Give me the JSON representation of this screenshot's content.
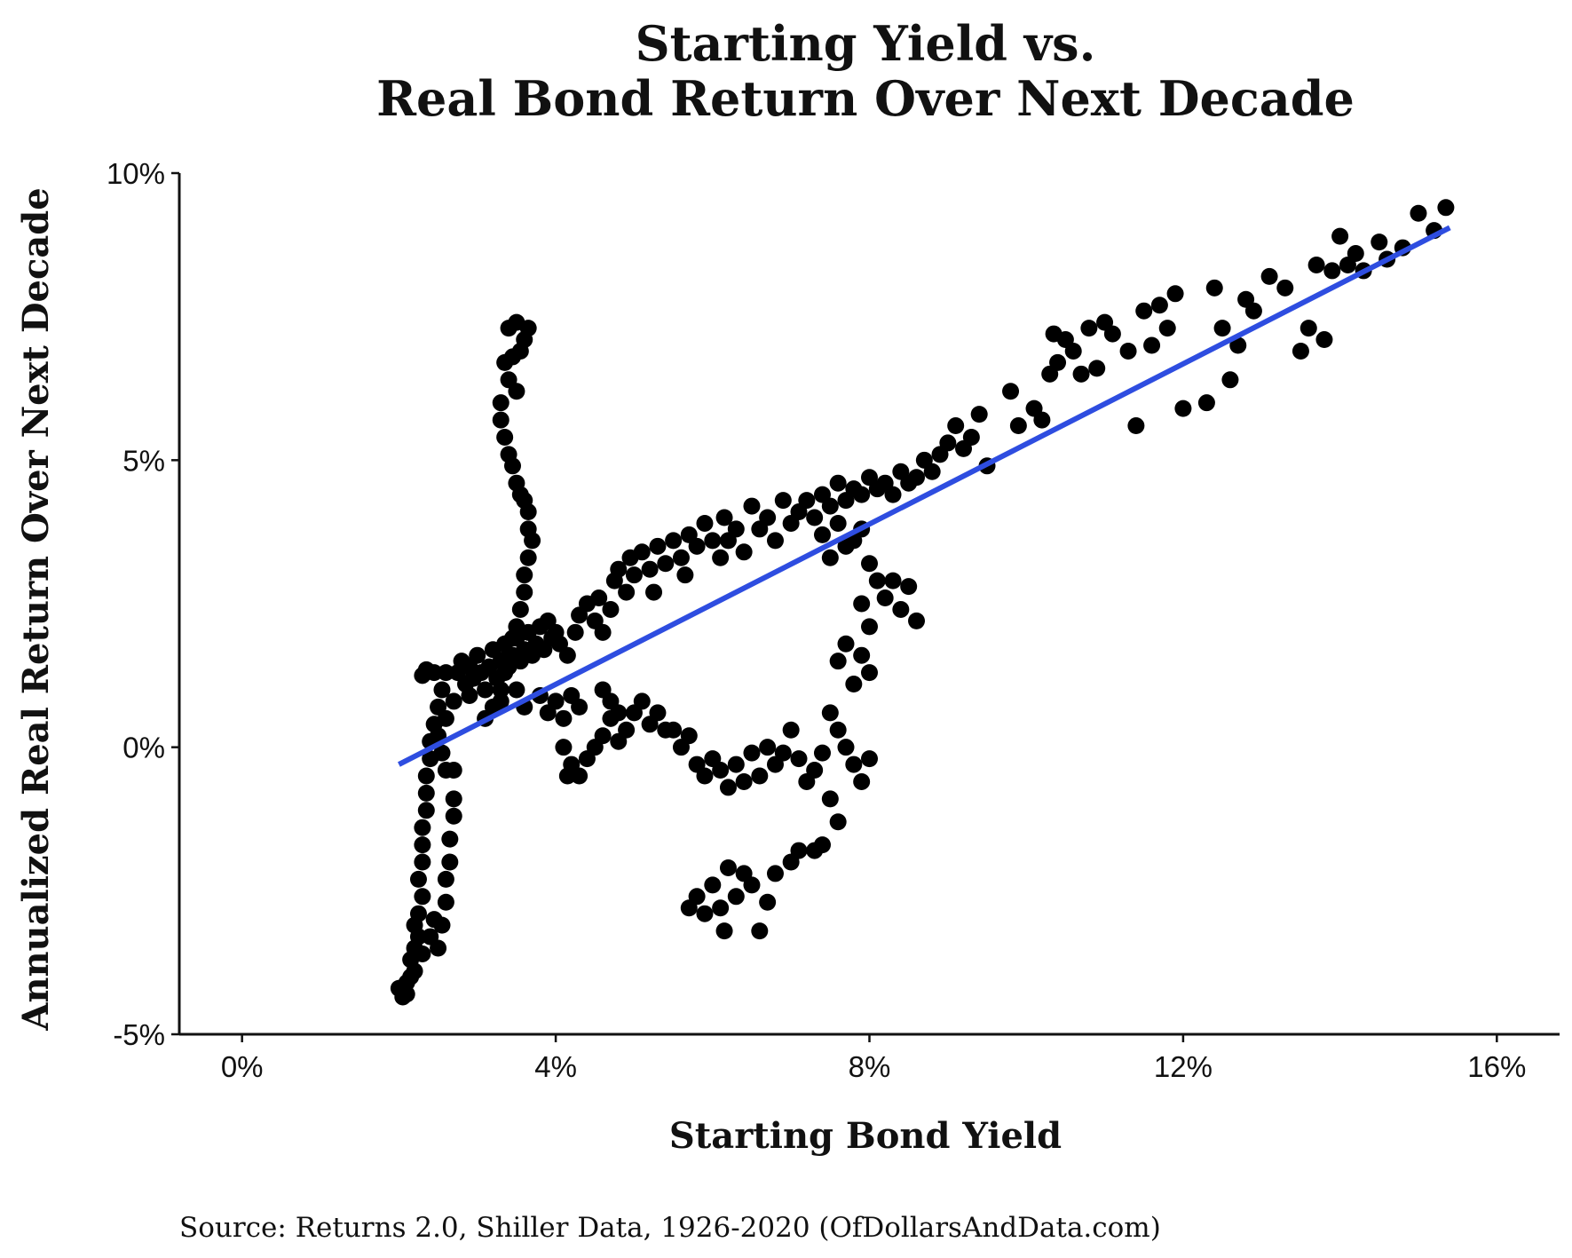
{
  "chart_data": {
    "type": "scatter",
    "title_lines": [
      "Starting Yield vs.",
      "Real Bond Return Over Next Decade"
    ],
    "xlabel": "Starting Bond Yield",
    "ylabel": "Annualized Real Return Over Next Decade",
    "source": "Source:  Returns 2.0, Shiller Data, 1926-2020 (OfDollarsAndData.com)",
    "xlim": [
      -0.8,
      16.8
    ],
    "ylim": [
      -5,
      10
    ],
    "x_ticks": [
      {
        "value": 0,
        "label": "0%"
      },
      {
        "value": 4,
        "label": "4%"
      },
      {
        "value": 8,
        "label": "8%"
      },
      {
        "value": 12,
        "label": "12%"
      },
      {
        "value": 16,
        "label": "16%"
      }
    ],
    "y_ticks": [
      {
        "value": -5,
        "label": "-5%"
      },
      {
        "value": 0,
        "label": "0%"
      },
      {
        "value": 5,
        "label": "5%"
      },
      {
        "value": 10,
        "label": "10%"
      }
    ],
    "grid": false,
    "point_color": "#000000",
    "trend_color": "#2e4de0",
    "trend_line": {
      "x": [
        2.0,
        15.4
      ],
      "y": [
        -0.3,
        9.05
      ]
    },
    "series": [
      {
        "points": [
          [
            2.0,
            -4.2
          ],
          [
            2.05,
            -4.35
          ],
          [
            2.1,
            -4.3
          ],
          [
            2.1,
            -4.1
          ],
          [
            2.15,
            -4.0
          ],
          [
            2.2,
            -3.9
          ],
          [
            2.15,
            -3.7
          ],
          [
            2.2,
            -3.5
          ],
          [
            2.25,
            -3.3
          ],
          [
            2.2,
            -3.1
          ],
          [
            2.25,
            -2.9
          ],
          [
            2.3,
            -2.6
          ],
          [
            2.25,
            -2.3
          ],
          [
            2.3,
            -2.0
          ],
          [
            2.3,
            -1.7
          ],
          [
            2.3,
            -1.4
          ],
          [
            2.35,
            -1.1
          ],
          [
            2.35,
            -0.8
          ],
          [
            2.35,
            -0.5
          ],
          [
            2.4,
            -0.2
          ],
          [
            2.4,
            0.1
          ],
          [
            2.45,
            0.4
          ],
          [
            2.5,
            0.7
          ],
          [
            2.55,
            1.0
          ],
          [
            2.6,
            1.3
          ],
          [
            2.3,
            1.25
          ],
          [
            2.35,
            1.35
          ],
          [
            2.45,
            1.3
          ],
          [
            2.3,
            -3.6
          ],
          [
            2.4,
            -3.3
          ],
          [
            2.45,
            -3.0
          ],
          [
            2.5,
            -3.5
          ],
          [
            2.55,
            -3.1
          ],
          [
            2.6,
            -2.7
          ],
          [
            2.6,
            -2.3
          ],
          [
            2.65,
            -2.0
          ],
          [
            2.65,
            -1.6
          ],
          [
            2.7,
            -1.2
          ],
          [
            2.7,
            -0.9
          ],
          [
            2.6,
            -0.4
          ],
          [
            2.55,
            -0.1
          ],
          [
            2.5,
            0.2
          ],
          [
            2.6,
            0.5
          ],
          [
            2.7,
            0.8
          ],
          [
            2.7,
            -0.4
          ],
          [
            2.75,
            1.3
          ],
          [
            2.8,
            1.5
          ],
          [
            2.85,
            1.1
          ],
          [
            2.9,
            1.4
          ],
          [
            2.9,
            0.9
          ],
          [
            2.95,
            1.2
          ],
          [
            3.0,
            1.6
          ],
          [
            3.05,
            1.3
          ],
          [
            3.1,
            1.0
          ],
          [
            3.15,
            1.4
          ],
          [
            3.2,
            1.7
          ],
          [
            3.25,
            1.2
          ],
          [
            3.3,
            1.5
          ],
          [
            3.3,
            0.8
          ],
          [
            3.35,
            1.8
          ],
          [
            3.4,
            1.4
          ],
          [
            3.45,
            1.6
          ],
          [
            3.5,
            1.9
          ],
          [
            3.55,
            1.5
          ],
          [
            3.6,
            1.7
          ],
          [
            3.65,
            2.0
          ],
          [
            3.7,
            1.6
          ],
          [
            3.75,
            1.8
          ],
          [
            3.8,
            2.1
          ],
          [
            3.85,
            1.7
          ],
          [
            3.9,
            2.2
          ],
          [
            3.95,
            1.9
          ],
          [
            4.0,
            2.0
          ],
          [
            4.05,
            1.8
          ],
          [
            3.5,
            1.0
          ],
          [
            3.6,
            0.7
          ],
          [
            3.8,
            0.9
          ],
          [
            3.9,
            0.6
          ],
          [
            4.0,
            0.8
          ],
          [
            4.1,
            0.5
          ],
          [
            4.2,
            0.9
          ],
          [
            4.3,
            0.7
          ],
          [
            4.15,
            1.6
          ],
          [
            4.25,
            2.0
          ],
          [
            4.3,
            2.3
          ],
          [
            4.4,
            2.5
          ],
          [
            4.5,
            2.2
          ],
          [
            4.55,
            2.6
          ],
          [
            4.6,
            2.0
          ],
          [
            4.7,
            2.4
          ],
          [
            4.75,
            2.9
          ],
          [
            4.8,
            3.1
          ],
          [
            4.9,
            2.7
          ],
          [
            4.95,
            3.3
          ],
          [
            5.0,
            3.0
          ],
          [
            5.1,
            3.4
          ],
          [
            5.2,
            3.1
          ],
          [
            5.25,
            2.7
          ],
          [
            5.3,
            3.5
          ],
          [
            5.4,
            3.2
          ],
          [
            5.5,
            3.6
          ],
          [
            5.6,
            3.3
          ],
          [
            5.65,
            3.0
          ],
          [
            5.7,
            3.7
          ],
          [
            5.8,
            3.5
          ],
          [
            5.9,
            3.9
          ],
          [
            6.0,
            3.6
          ],
          [
            6.1,
            3.3
          ],
          [
            6.15,
            4.0
          ],
          [
            6.2,
            3.6
          ],
          [
            6.3,
            3.8
          ],
          [
            6.4,
            3.4
          ],
          [
            6.5,
            4.2
          ],
          [
            6.6,
            3.8
          ],
          [
            6.7,
            4.0
          ],
          [
            6.8,
            3.6
          ],
          [
            6.9,
            4.3
          ],
          [
            7.0,
            3.9
          ],
          [
            7.1,
            4.1
          ],
          [
            7.2,
            4.3
          ],
          [
            7.3,
            4.0
          ],
          [
            7.4,
            4.4
          ],
          [
            7.5,
            4.2
          ],
          [
            7.6,
            4.6
          ],
          [
            7.7,
            4.3
          ],
          [
            7.8,
            4.5
          ],
          [
            7.9,
            4.4
          ],
          [
            8.0,
            4.7
          ],
          [
            8.1,
            4.5
          ],
          [
            8.2,
            4.6
          ],
          [
            8.3,
            4.4
          ],
          [
            8.4,
            4.8
          ],
          [
            8.5,
            4.6
          ],
          [
            8.6,
            4.7
          ],
          [
            8.7,
            5.0
          ],
          [
            8.8,
            4.8
          ],
          [
            8.9,
            5.1
          ],
          [
            9.0,
            5.3
          ],
          [
            9.1,
            5.6
          ],
          [
            9.2,
            5.2
          ],
          [
            9.3,
            5.4
          ],
          [
            9.4,
            5.8
          ],
          [
            9.5,
            4.9
          ],
          [
            9.8,
            6.2
          ],
          [
            9.9,
            5.6
          ],
          [
            10.1,
            5.9
          ],
          [
            10.2,
            5.7
          ],
          [
            10.3,
            6.5
          ],
          [
            10.35,
            7.2
          ],
          [
            10.4,
            6.7
          ],
          [
            10.5,
            7.1
          ],
          [
            10.6,
            6.9
          ],
          [
            10.7,
            6.5
          ],
          [
            10.8,
            7.3
          ],
          [
            10.9,
            6.6
          ],
          [
            11.0,
            7.4
          ],
          [
            11.1,
            7.2
          ],
          [
            11.3,
            6.9
          ],
          [
            11.4,
            5.6
          ],
          [
            11.5,
            7.6
          ],
          [
            11.6,
            7.0
          ],
          [
            11.7,
            7.7
          ],
          [
            11.8,
            7.3
          ],
          [
            11.9,
            7.9
          ],
          [
            12.0,
            5.9
          ],
          [
            12.3,
            6.0
          ],
          [
            12.4,
            8.0
          ],
          [
            12.5,
            7.3
          ],
          [
            12.6,
            6.4
          ],
          [
            12.7,
            7.0
          ],
          [
            12.8,
            7.8
          ],
          [
            12.9,
            7.6
          ],
          [
            13.1,
            8.2
          ],
          [
            13.3,
            8.0
          ],
          [
            13.5,
            6.9
          ],
          [
            13.6,
            7.3
          ],
          [
            13.7,
            8.4
          ],
          [
            13.8,
            7.1
          ],
          [
            13.9,
            8.3
          ],
          [
            14.0,
            8.9
          ],
          [
            14.1,
            8.4
          ],
          [
            14.2,
            8.6
          ],
          [
            14.3,
            8.3
          ],
          [
            14.5,
            8.8
          ],
          [
            14.6,
            8.5
          ],
          [
            14.8,
            8.7
          ],
          [
            15.0,
            9.3
          ],
          [
            15.2,
            9.0
          ],
          [
            15.35,
            9.4
          ],
          [
            7.4,
            3.7
          ],
          [
            7.5,
            3.3
          ],
          [
            7.6,
            3.9
          ],
          [
            7.7,
            3.5
          ],
          [
            7.8,
            3.6
          ],
          [
            7.9,
            3.8
          ],
          [
            8.0,
            3.2
          ],
          [
            8.1,
            2.9
          ],
          [
            8.2,
            2.6
          ],
          [
            8.3,
            2.9
          ],
          [
            8.4,
            2.4
          ],
          [
            8.5,
            2.8
          ],
          [
            8.6,
            2.2
          ],
          [
            7.9,
            2.5
          ],
          [
            8.0,
            2.1
          ],
          [
            7.7,
            1.8
          ],
          [
            7.6,
            1.5
          ],
          [
            7.8,
            1.1
          ],
          [
            7.9,
            1.6
          ],
          [
            8.0,
            1.3
          ],
          [
            7.5,
            0.6
          ],
          [
            7.6,
            0.3
          ],
          [
            7.7,
            0.0
          ],
          [
            7.8,
            -0.3
          ],
          [
            7.9,
            -0.6
          ],
          [
            8.0,
            -0.2
          ],
          [
            7.5,
            -0.9
          ],
          [
            7.6,
            -1.3
          ],
          [
            7.4,
            -1.7
          ],
          [
            7.3,
            -1.8
          ],
          [
            7.1,
            -1.8
          ],
          [
            7.0,
            -2.0
          ],
          [
            6.8,
            -2.2
          ],
          [
            6.7,
            -2.7
          ],
          [
            6.6,
            -3.2
          ],
          [
            6.5,
            -2.4
          ],
          [
            6.4,
            -2.2
          ],
          [
            6.3,
            -2.6
          ],
          [
            6.2,
            -2.1
          ],
          [
            6.15,
            -3.2
          ],
          [
            6.1,
            -2.8
          ],
          [
            6.0,
            -2.4
          ],
          [
            5.9,
            -2.9
          ],
          [
            5.8,
            -2.6
          ],
          [
            5.7,
            -2.8
          ],
          [
            6.3,
            -0.3
          ],
          [
            6.4,
            -0.6
          ],
          [
            6.5,
            -0.1
          ],
          [
            6.6,
            -0.5
          ],
          [
            6.7,
            0.0
          ],
          [
            6.8,
            -0.3
          ],
          [
            6.9,
            -0.1
          ],
          [
            7.0,
            0.3
          ],
          [
            7.1,
            -0.2
          ],
          [
            7.2,
            -0.6
          ],
          [
            7.3,
            -0.4
          ],
          [
            7.4,
            -0.1
          ],
          [
            5.5,
            0.3
          ],
          [
            5.6,
            0.0
          ],
          [
            5.7,
            0.2
          ],
          [
            5.8,
            -0.3
          ],
          [
            5.9,
            -0.5
          ],
          [
            6.0,
            -0.2
          ],
          [
            6.1,
            -0.4
          ],
          [
            6.2,
            -0.7
          ],
          [
            5.0,
            0.6
          ],
          [
            5.1,
            0.8
          ],
          [
            5.2,
            0.4
          ],
          [
            5.3,
            0.6
          ],
          [
            5.4,
            0.3
          ],
          [
            4.6,
            0.2
          ],
          [
            4.7,
            0.5
          ],
          [
            4.8,
            0.1
          ],
          [
            4.9,
            0.3
          ],
          [
            4.5,
            0.0
          ],
          [
            4.2,
            -0.3
          ],
          [
            4.3,
            -0.5
          ],
          [
            4.4,
            -0.2
          ],
          [
            4.1,
            0.0
          ],
          [
            4.15,
            -0.5
          ],
          [
            4.6,
            1.0
          ],
          [
            4.7,
            0.8
          ],
          [
            4.8,
            0.6
          ],
          [
            3.4,
            7.3
          ],
          [
            3.5,
            7.4
          ],
          [
            3.6,
            7.1
          ],
          [
            3.55,
            6.9
          ],
          [
            3.65,
            7.3
          ],
          [
            3.45,
            6.8
          ],
          [
            3.35,
            6.7
          ],
          [
            3.4,
            6.4
          ],
          [
            3.5,
            6.2
          ],
          [
            3.3,
            6.0
          ],
          [
            3.3,
            5.7
          ],
          [
            3.35,
            5.4
          ],
          [
            3.4,
            5.1
          ],
          [
            3.45,
            4.9
          ],
          [
            3.5,
            4.6
          ],
          [
            3.55,
            4.4
          ],
          [
            3.6,
            4.3
          ],
          [
            3.65,
            4.1
          ],
          [
            3.65,
            3.8
          ],
          [
            3.7,
            3.6
          ],
          [
            3.65,
            3.3
          ],
          [
            3.6,
            3.0
          ],
          [
            3.6,
            2.7
          ],
          [
            3.55,
            2.4
          ],
          [
            3.5,
            2.1
          ],
          [
            3.45,
            1.9
          ],
          [
            3.4,
            1.6
          ],
          [
            3.35,
            1.3
          ],
          [
            3.3,
            1.0
          ],
          [
            3.2,
            0.7
          ],
          [
            3.1,
            0.5
          ]
        ]
      }
    ]
  }
}
